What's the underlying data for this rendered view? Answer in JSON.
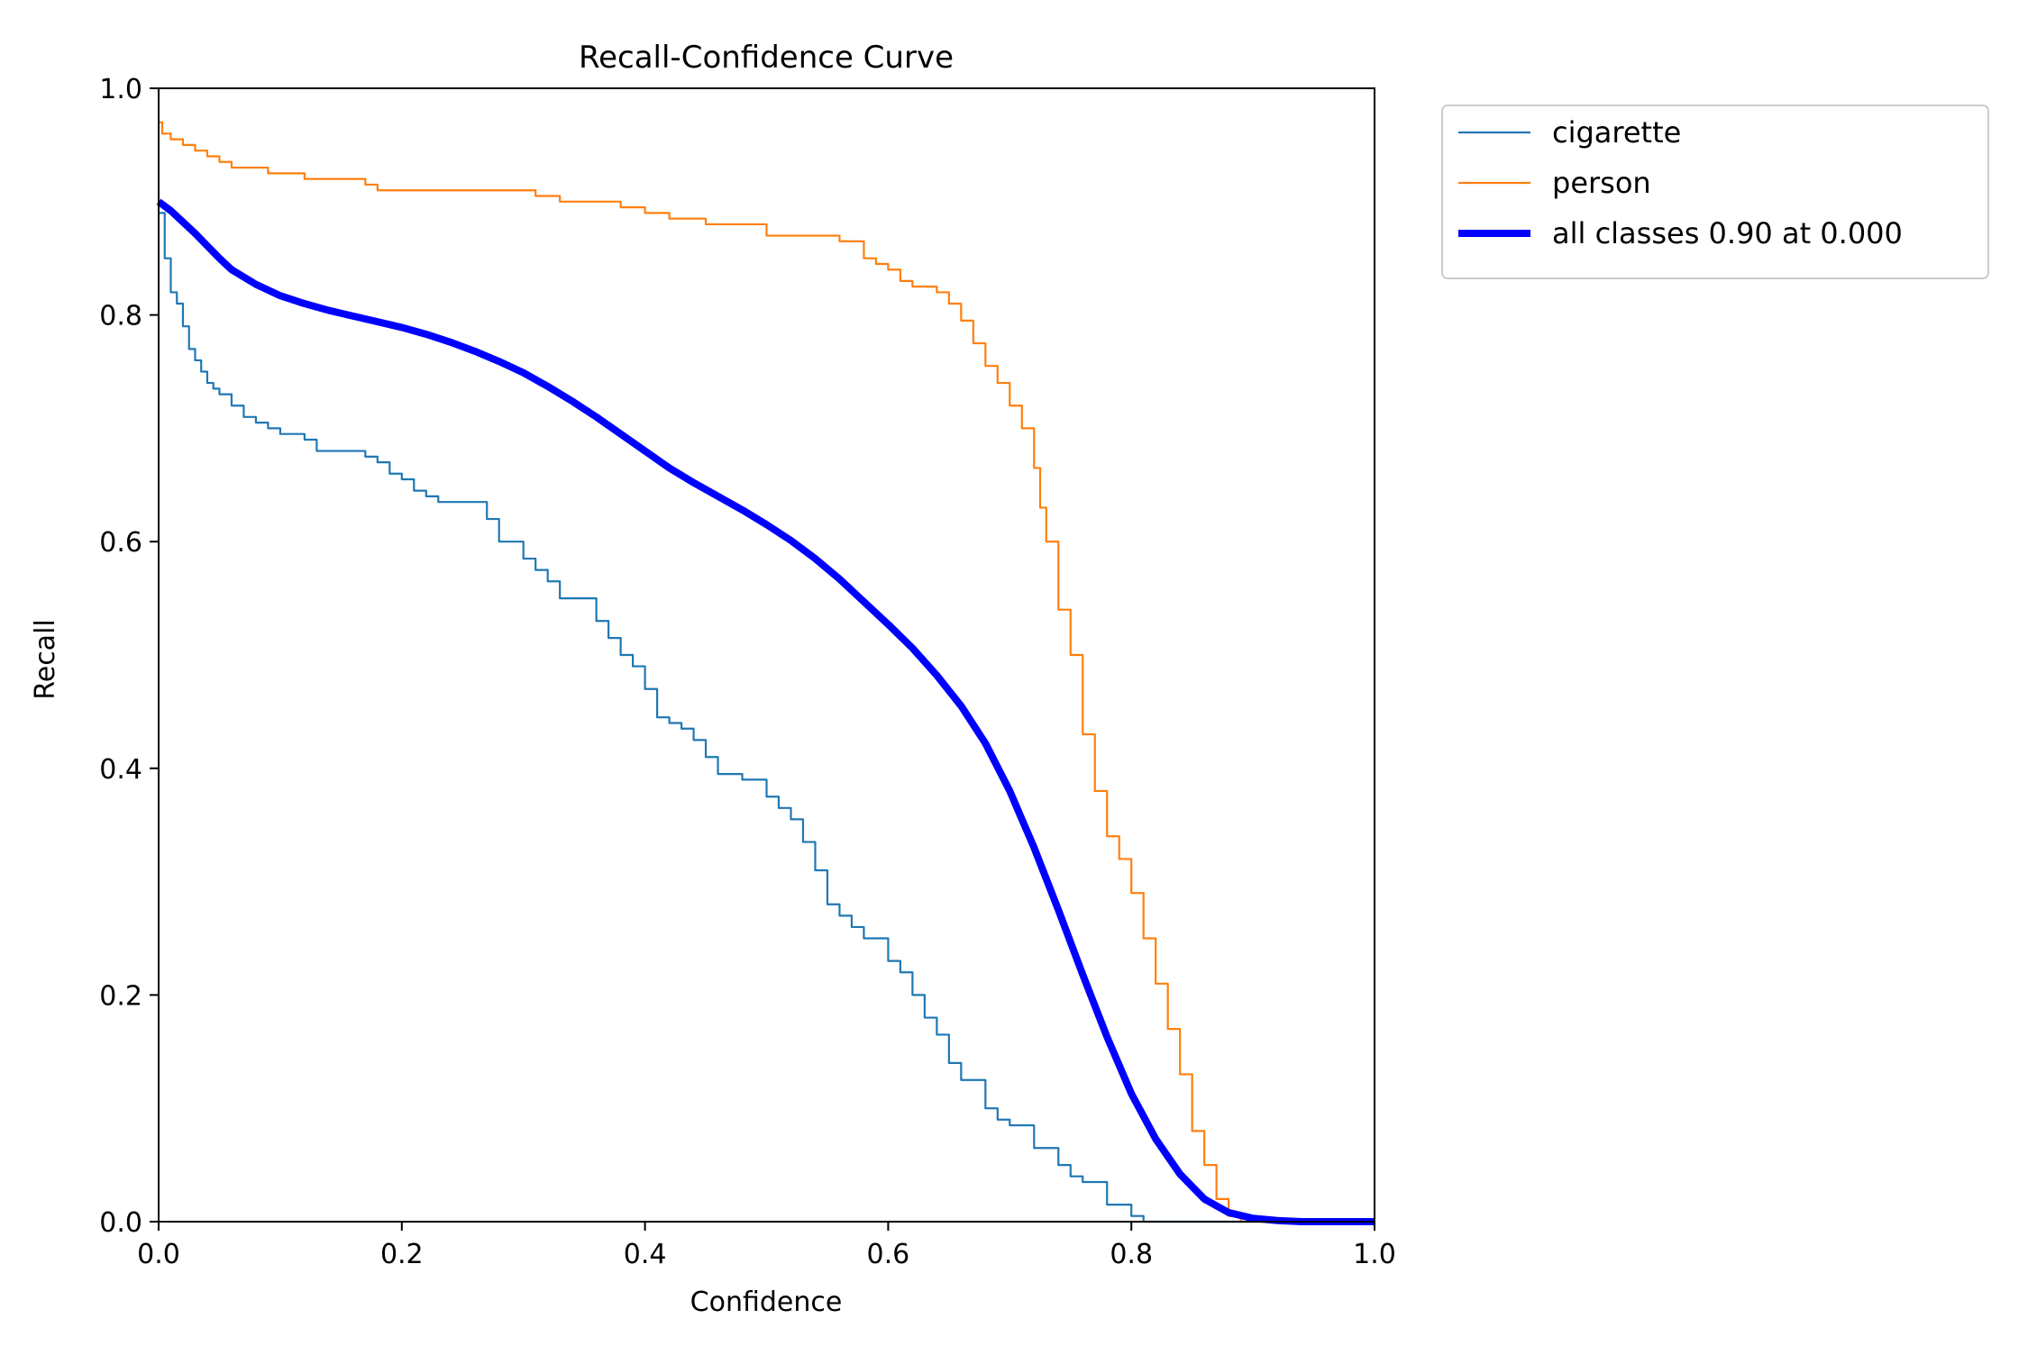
{
  "chart_data": {
    "type": "line",
    "title": "Recall-Confidence Curve",
    "xlabel": "Confidence",
    "ylabel": "Recall",
    "xlim": [
      0.0,
      1.0
    ],
    "ylim": [
      0.0,
      1.0
    ],
    "x_ticks": [
      "0.0",
      "0.2",
      "0.4",
      "0.6",
      "0.8",
      "1.0"
    ],
    "y_ticks": [
      "0.0",
      "0.2",
      "0.4",
      "0.6",
      "0.8",
      "1.0"
    ],
    "grid": false,
    "legend_position": "outside-top-right",
    "series": [
      {
        "name": "cigarette",
        "color": "#1f77b4",
        "width": "thin",
        "step": true,
        "x": [
          0.0,
          0.005,
          0.01,
          0.015,
          0.02,
          0.025,
          0.03,
          0.035,
          0.04,
          0.045,
          0.05,
          0.06,
          0.07,
          0.08,
          0.09,
          0.1,
          0.12,
          0.13,
          0.15,
          0.17,
          0.18,
          0.19,
          0.2,
          0.21,
          0.22,
          0.23,
          0.26,
          0.27,
          0.28,
          0.3,
          0.31,
          0.32,
          0.33,
          0.35,
          0.36,
          0.37,
          0.38,
          0.39,
          0.4,
          0.41,
          0.42,
          0.43,
          0.44,
          0.45,
          0.46,
          0.48,
          0.5,
          0.51,
          0.52,
          0.53,
          0.54,
          0.55,
          0.56,
          0.57,
          0.58,
          0.6,
          0.61,
          0.62,
          0.63,
          0.64,
          0.65,
          0.66,
          0.68,
          0.69,
          0.7,
          0.72,
          0.74,
          0.75,
          0.76,
          0.78,
          0.8,
          0.81,
          0.85,
          0.9,
          1.0
        ],
        "y": [
          0.89,
          0.85,
          0.82,
          0.81,
          0.79,
          0.77,
          0.76,
          0.75,
          0.74,
          0.735,
          0.73,
          0.72,
          0.71,
          0.705,
          0.7,
          0.695,
          0.69,
          0.68,
          0.68,
          0.675,
          0.67,
          0.66,
          0.655,
          0.645,
          0.64,
          0.635,
          0.635,
          0.62,
          0.6,
          0.585,
          0.575,
          0.565,
          0.55,
          0.55,
          0.53,
          0.515,
          0.5,
          0.49,
          0.47,
          0.445,
          0.44,
          0.435,
          0.425,
          0.41,
          0.395,
          0.39,
          0.375,
          0.365,
          0.355,
          0.335,
          0.31,
          0.28,
          0.27,
          0.26,
          0.25,
          0.23,
          0.22,
          0.2,
          0.18,
          0.165,
          0.14,
          0.125,
          0.1,
          0.09,
          0.085,
          0.065,
          0.05,
          0.04,
          0.035,
          0.015,
          0.005,
          0.0,
          0.0,
          0.0,
          0.0
        ]
      },
      {
        "name": "person",
        "color": "#ff7f0e",
        "width": "thin",
        "step": true,
        "x": [
          0.0,
          0.003,
          0.01,
          0.02,
          0.03,
          0.04,
          0.05,
          0.06,
          0.08,
          0.09,
          0.1,
          0.12,
          0.15,
          0.17,
          0.18,
          0.2,
          0.25,
          0.3,
          0.31,
          0.33,
          0.35,
          0.38,
          0.4,
          0.42,
          0.45,
          0.5,
          0.52,
          0.55,
          0.56,
          0.58,
          0.59,
          0.6,
          0.61,
          0.62,
          0.64,
          0.65,
          0.66,
          0.67,
          0.68,
          0.69,
          0.7,
          0.71,
          0.72,
          0.725,
          0.73,
          0.74,
          0.75,
          0.76,
          0.77,
          0.78,
          0.79,
          0.8,
          0.81,
          0.82,
          0.83,
          0.84,
          0.85,
          0.86,
          0.87,
          0.88,
          0.89,
          0.9,
          1.0
        ],
        "y": [
          0.97,
          0.96,
          0.955,
          0.95,
          0.945,
          0.94,
          0.935,
          0.93,
          0.93,
          0.925,
          0.925,
          0.92,
          0.92,
          0.915,
          0.91,
          0.91,
          0.91,
          0.91,
          0.905,
          0.9,
          0.9,
          0.895,
          0.89,
          0.885,
          0.88,
          0.87,
          0.87,
          0.87,
          0.865,
          0.85,
          0.845,
          0.84,
          0.83,
          0.825,
          0.82,
          0.81,
          0.795,
          0.775,
          0.755,
          0.74,
          0.72,
          0.7,
          0.665,
          0.63,
          0.6,
          0.54,
          0.5,
          0.43,
          0.38,
          0.34,
          0.32,
          0.29,
          0.25,
          0.21,
          0.17,
          0.13,
          0.08,
          0.05,
          0.02,
          0.005,
          0.0,
          0.0,
          0.0
        ]
      },
      {
        "name": "all classes 0.90 at 0.000",
        "color": "#0000ff",
        "width": "thick",
        "step": false,
        "x": [
          0.0,
          0.01,
          0.02,
          0.03,
          0.04,
          0.05,
          0.06,
          0.08,
          0.1,
          0.12,
          0.14,
          0.16,
          0.18,
          0.2,
          0.22,
          0.24,
          0.26,
          0.28,
          0.3,
          0.32,
          0.34,
          0.36,
          0.38,
          0.4,
          0.42,
          0.44,
          0.46,
          0.48,
          0.5,
          0.52,
          0.54,
          0.56,
          0.58,
          0.6,
          0.62,
          0.64,
          0.66,
          0.68,
          0.7,
          0.72,
          0.74,
          0.76,
          0.78,
          0.8,
          0.82,
          0.84,
          0.86,
          0.88,
          0.9,
          0.92,
          0.94,
          0.96,
          0.98,
          1.0
        ],
        "y": [
          0.9,
          0.892,
          0.882,
          0.872,
          0.861,
          0.85,
          0.84,
          0.827,
          0.817,
          0.81,
          0.804,
          0.799,
          0.794,
          0.789,
          0.783,
          0.776,
          0.768,
          0.759,
          0.749,
          0.737,
          0.724,
          0.71,
          0.695,
          0.68,
          0.665,
          0.652,
          0.64,
          0.628,
          0.615,
          0.601,
          0.585,
          0.567,
          0.547,
          0.527,
          0.506,
          0.482,
          0.455,
          0.422,
          0.38,
          0.33,
          0.275,
          0.218,
          0.163,
          0.113,
          0.073,
          0.042,
          0.02,
          0.008,
          0.003,
          0.001,
          0.0,
          0.0,
          0.0,
          0.0
        ]
      }
    ]
  }
}
